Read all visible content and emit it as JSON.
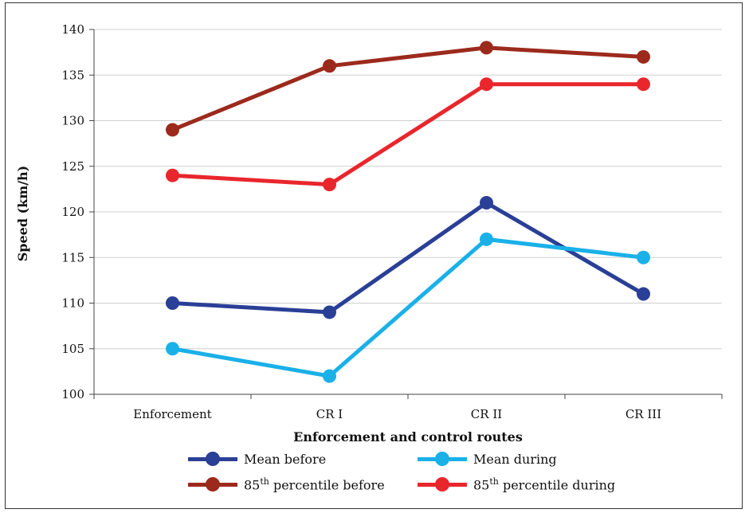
{
  "chart_data": {
    "type": "line",
    "categories": [
      "Enforcement",
      "CR I",
      "CR II",
      "CR III"
    ],
    "xlabel": "Enforcement and control routes",
    "ylabel": "Speed (km/h)",
    "ylim": [
      100,
      140
    ],
    "yticks": [
      100,
      105,
      110,
      115,
      120,
      125,
      130,
      135,
      140
    ],
    "grid": true,
    "legend_position": "bottom",
    "series": [
      {
        "name": "Mean before",
        "color": "#2a3f96",
        "values": [
          110,
          109,
          121,
          111
        ]
      },
      {
        "name": "Mean during",
        "color": "#1ab0e8",
        "values": [
          105,
          102,
          117,
          115
        ]
      },
      {
        "name": "85th percentile before",
        "name_base": "85",
        "name_sup": "th",
        "name_rest": " percentile before",
        "color": "#9c2a1c",
        "values": [
          129,
          136,
          138,
          137
        ]
      },
      {
        "name": "85th percentile during",
        "name_base": "85",
        "name_sup": "th",
        "name_rest": " percentile during",
        "color": "#e8262c",
        "values": [
          124,
          123,
          134,
          134
        ]
      }
    ]
  }
}
